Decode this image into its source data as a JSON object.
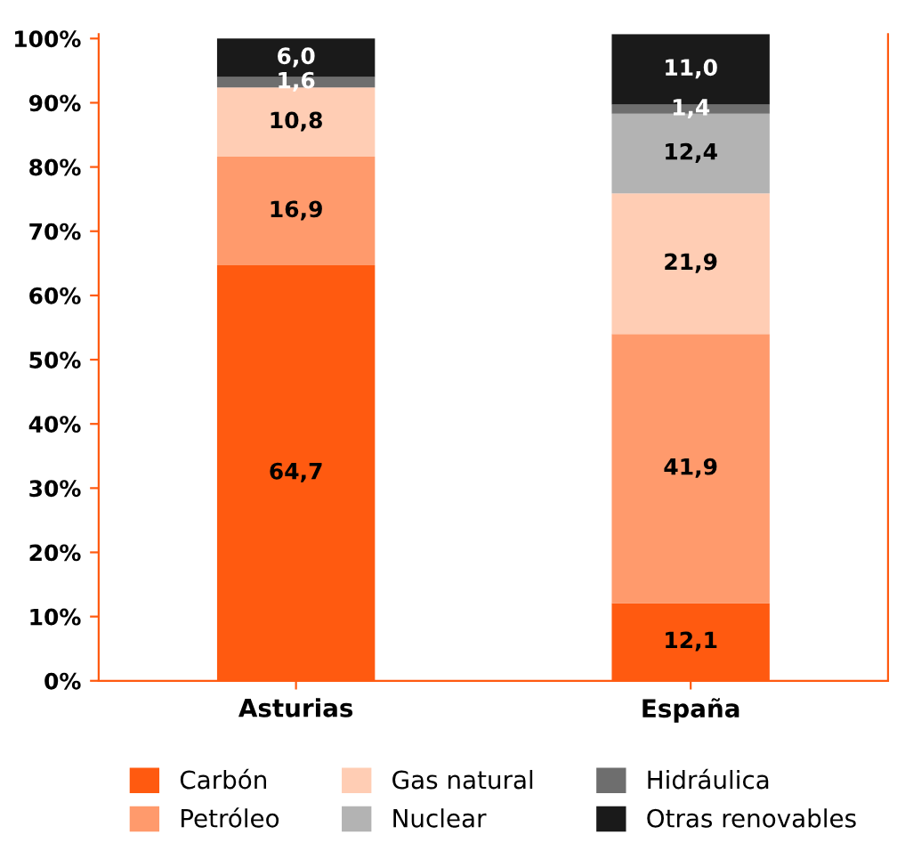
{
  "chart_data": {
    "type": "bar",
    "stacked": true,
    "categories": [
      "Asturias",
      "España"
    ],
    "series": [
      {
        "name": "Carbón",
        "color": "#ff5a10",
        "values": [
          64.7,
          12.1
        ],
        "value_labels": [
          "64,7",
          "12,1"
        ]
      },
      {
        "name": "Petróleo",
        "color": "#ff9a6c",
        "values": [
          16.9,
          41.9
        ],
        "value_labels": [
          "16,9",
          "41,9"
        ]
      },
      {
        "name": "Gas natural",
        "color": "#ffcdb4",
        "values": [
          10.8,
          21.9
        ],
        "value_labels": [
          "10,8",
          "21,9"
        ]
      },
      {
        "name": "Nuclear",
        "color": "#b3b3b3",
        "values": [
          0,
          12.4
        ],
        "value_labels": [
          null,
          "12,4"
        ]
      },
      {
        "name": "Hidráulica",
        "color": "#6e6e6e",
        "values": [
          1.6,
          1.4
        ],
        "value_labels": [
          "1,6",
          "1,4"
        ]
      },
      {
        "name": "Otras renovables",
        "color": "#1a1a1a",
        "values": [
          6.0,
          11.0
        ],
        "value_labels": [
          "6,0",
          "11,0"
        ]
      }
    ],
    "ylim": [
      0,
      100.7
    ],
    "yticks": [
      {
        "value": 0,
        "label": "0%"
      },
      {
        "value": 10,
        "label": "10%"
      },
      {
        "value": 20,
        "label": "20%"
      },
      {
        "value": 30,
        "label": "30%"
      },
      {
        "value": 40,
        "label": "40%"
      },
      {
        "value": 50,
        "label": "50%"
      },
      {
        "value": 60,
        "label": "60%"
      },
      {
        "value": 70,
        "label": "70%"
      },
      {
        "value": 80,
        "label": "80%"
      },
      {
        "value": 90,
        "label": "90%"
      },
      {
        "value": 100,
        "label": "100%"
      }
    ],
    "grid": false,
    "legend": "bottom"
  }
}
